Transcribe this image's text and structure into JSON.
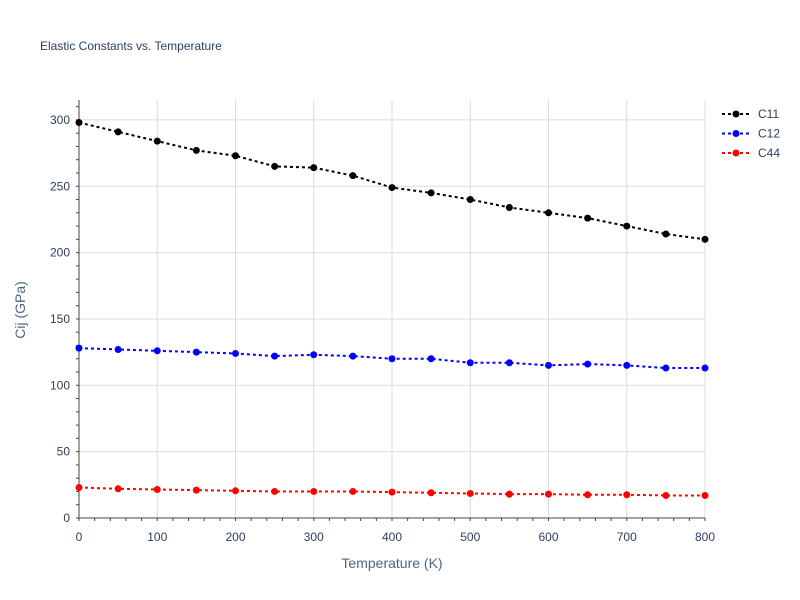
{
  "chart_data": {
    "type": "line",
    "title": "Elastic Constants vs. Temperature",
    "xlabel": "Temperature (K)",
    "ylabel": "Cij (GPa)",
    "xlim": [
      0,
      800
    ],
    "ylim": [
      0,
      315
    ],
    "x_ticks": [
      0,
      100,
      200,
      300,
      400,
      500,
      600,
      700,
      800
    ],
    "y_ticks": [
      0,
      50,
      100,
      150,
      200,
      250,
      300
    ],
    "grid": true,
    "legend_position": "top-right",
    "x": [
      0,
      50,
      100,
      150,
      200,
      250,
      300,
      350,
      400,
      450,
      500,
      550,
      600,
      650,
      700,
      750,
      800
    ],
    "series": [
      {
        "name": "C11",
        "color": "#000000",
        "values": [
          298,
          291,
          284,
          277,
          273,
          265,
          264,
          258,
          249,
          245,
          240,
          234,
          230,
          226,
          220,
          214,
          210
        ]
      },
      {
        "name": "C12",
        "color": "#0000ff",
        "values": [
          128,
          127,
          126,
          125,
          124,
          122,
          123,
          122,
          120,
          120,
          117,
          117,
          115,
          116,
          115,
          113,
          113
        ]
      },
      {
        "name": "C44",
        "color": "#ff0000",
        "values": [
          23,
          22,
          21.5,
          21,
          20.5,
          20,
          20,
          20,
          19.5,
          19,
          18.5,
          18,
          18,
          17.5,
          17.5,
          17,
          17
        ]
      }
    ]
  }
}
